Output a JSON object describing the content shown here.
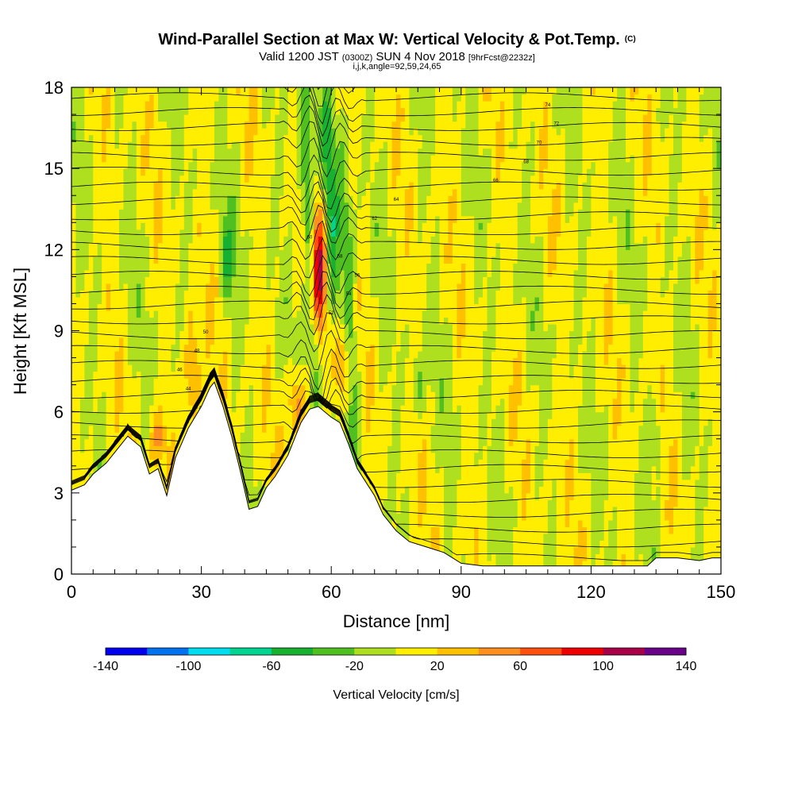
{
  "chart_data": {
    "type": "heatmap",
    "title": "Wind-Parallel Section at Max W: Vertical Velocity & Pot.Temp.",
    "title_note": "(C)",
    "subtitle_parts": [
      "Valid 1200 JST",
      "(0300Z)",
      "SUN 4 Nov 2018",
      "[9hrFcst@2232z]"
    ],
    "subsubtitle": "i,j,k,angle=92,59,24,65",
    "xlabel": "Distance [nm]",
    "ylabel": "Height [Kft MSL]",
    "xlim": [
      0,
      150
    ],
    "ylim": [
      0,
      18
    ],
    "x_ticks": [
      0,
      30,
      60,
      90,
      120,
      150
    ],
    "y_ticks": [
      0,
      3,
      6,
      9,
      12,
      15,
      18
    ],
    "colorbar": {
      "title": "Vertical Velocity [cm/s]",
      "range": [
        -140,
        140
      ],
      "step": 20,
      "tick_labels": [
        "-140",
        "-100",
        "-60",
        "-20",
        "20",
        "60",
        "100",
        "140"
      ],
      "colors": [
        "#0000ee",
        "#0072ee",
        "#00ddee",
        "#00d490",
        "#18b030",
        "#50c020",
        "#aee020",
        "#ffee00",
        "#ffc000",
        "#ff9020",
        "#ff5010",
        "#ee0000",
        "#a80048",
        "#680088"
      ]
    },
    "terrain_kft": {
      "x": [
        0,
        3,
        5,
        8,
        10,
        13,
        16,
        18,
        20,
        22,
        24,
        27,
        30,
        32,
        33,
        35,
        37,
        39,
        41,
        43,
        45,
        47,
        50,
        53,
        55,
        57,
        60,
        62,
        64,
        66,
        68,
        70,
        72,
        75,
        78,
        82,
        86,
        88,
        90,
        95,
        100,
        105,
        110,
        115,
        120,
        125,
        130,
        133,
        135,
        140,
        145,
        148,
        150
      ],
      "h": [
        3.1,
        3.3,
        3.7,
        4.1,
        4.5,
        5.1,
        4.7,
        3.7,
        3.9,
        2.9,
        4.3,
        5.4,
        6.2,
        6.9,
        7.1,
        6.2,
        5.1,
        3.8,
        2.4,
        2.5,
        3.2,
        3.6,
        4.4,
        5.6,
        6.1,
        6.2,
        5.8,
        5.6,
        4.8,
        3.9,
        3.4,
        2.9,
        2.2,
        1.6,
        1.2,
        1.0,
        0.8,
        0.6,
        0.4,
        0.3,
        0.3,
        0.3,
        0.3,
        0.3,
        0.3,
        0.3,
        0.3,
        0.3,
        0.6,
        0.6,
        0.5,
        0.6,
        0.6
      ]
    },
    "updraft_bands": [
      {
        "x": 57,
        "z0": 9,
        "z1": 13.5,
        "peak": 110
      },
      {
        "x": 62,
        "z0": 6,
        "z1": 9.5,
        "peak": 60
      },
      {
        "x": 52,
        "z0": 5,
        "z1": 7.5,
        "peak": 60
      },
      {
        "x": 28,
        "z0": 5,
        "z1": 9.5,
        "peak": 50
      },
      {
        "x": 20,
        "z0": 4,
        "z1": 6,
        "peak": 40
      }
    ],
    "downdraft_bands": [
      {
        "x": 55,
        "z0": 6,
        "z1": 18,
        "peak": -60
      },
      {
        "x": 60,
        "z0": 9,
        "z1": 18,
        "peak": -50
      },
      {
        "x": 64,
        "z0": 5,
        "z1": 16,
        "peak": -45
      },
      {
        "x": 36,
        "z0": 10,
        "z1": 13,
        "peak": -40
      },
      {
        "x": 80,
        "z0": 6,
        "z1": 8,
        "peak": -35
      },
      {
        "x": 135,
        "z0": 4,
        "z1": 6,
        "peak": -35
      }
    ],
    "potential_temperature_contour_labels": [
      "36",
      "38",
      "40",
      "42",
      "44",
      "46",
      "48",
      "50",
      "52",
      "54",
      "56",
      "58",
      "60",
      "62",
      "64",
      "66",
      "68",
      "70",
      "72",
      "74"
    ]
  }
}
